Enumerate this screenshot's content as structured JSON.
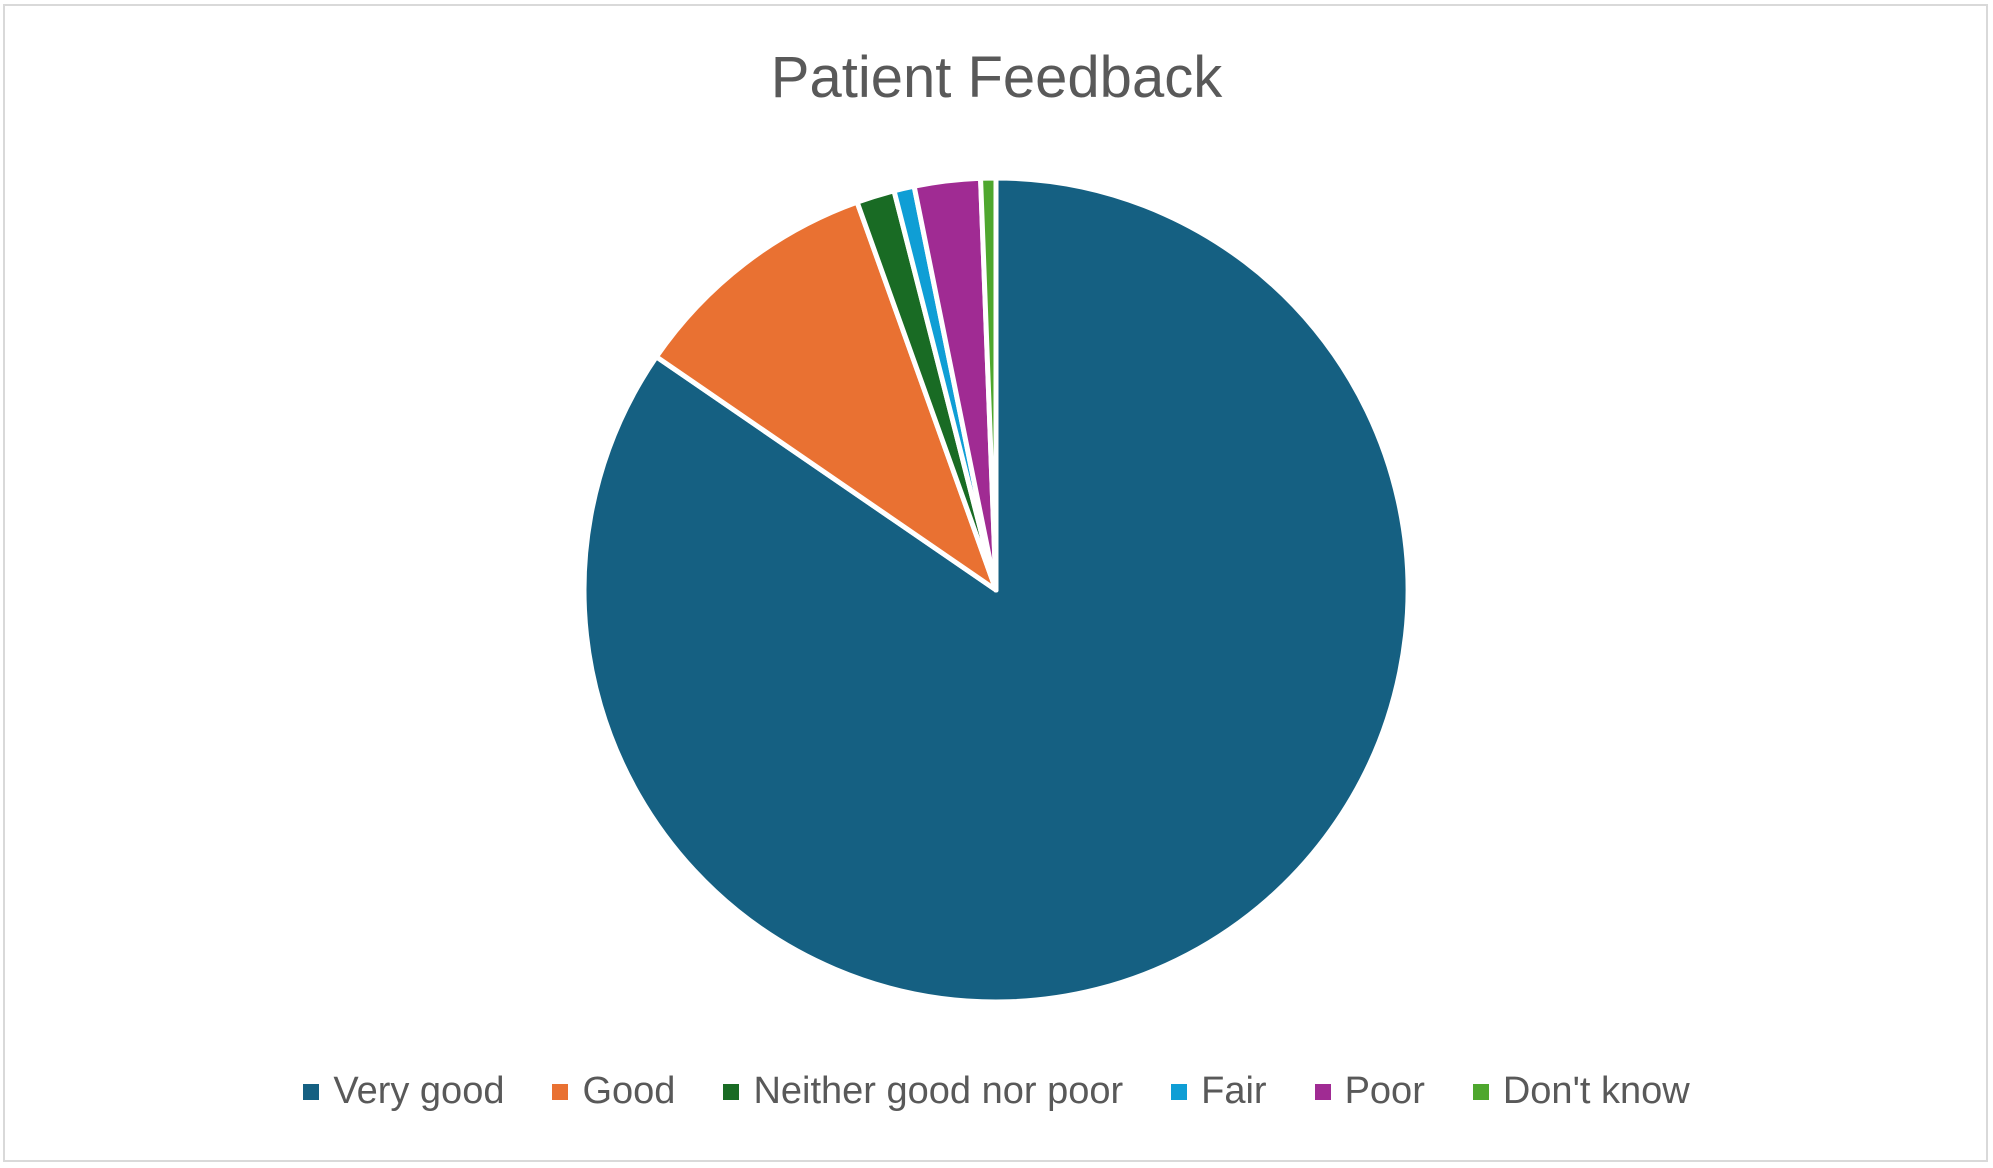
{
  "chart_data": {
    "type": "pie",
    "title": "Patient Feedback",
    "categories": [
      "Very good",
      "Good",
      "Neither good nor poor",
      "Fair",
      "Poor",
      "Don't know"
    ],
    "values": [
      85.0,
      10.0,
      1.5,
      0.8,
      2.6,
      0.6
    ],
    "colors": [
      "#156082",
      "#e97132",
      "#196b24",
      "#0f9ed5",
      "#a02b93",
      "#4ea72e"
    ],
    "legend_position": "bottom"
  }
}
